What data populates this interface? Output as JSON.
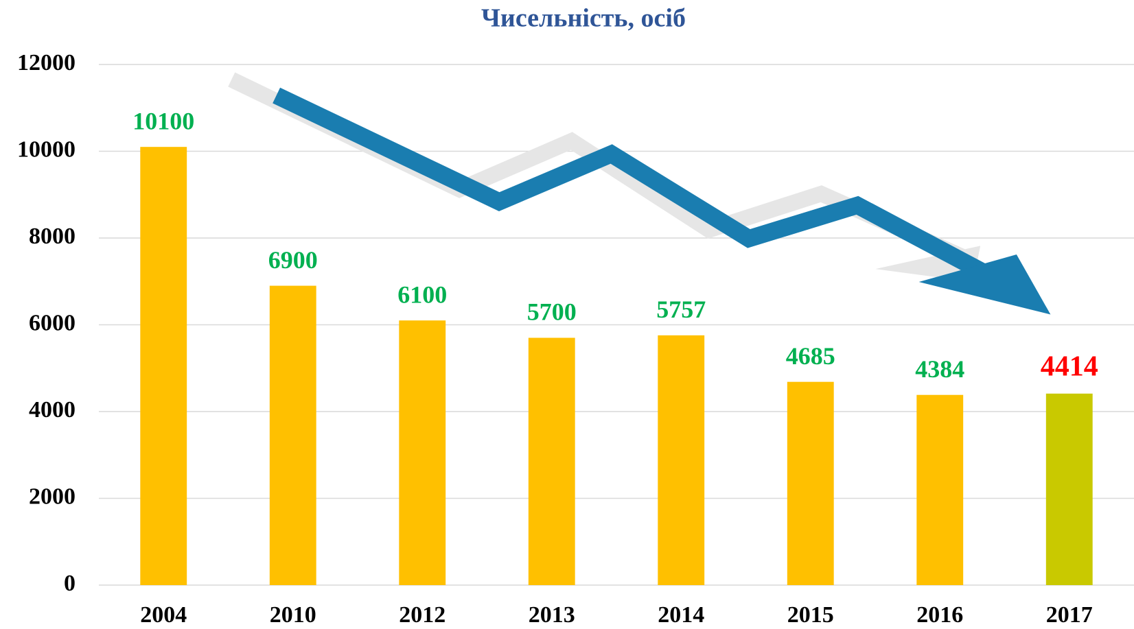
{
  "chart_data": {
    "type": "bar",
    "title": "Чисельність, осіб",
    "categories": [
      "2004",
      "2010",
      "2012",
      "2013",
      "2014",
      "2015",
      "2016",
      "2017"
    ],
    "values": [
      10100,
      6900,
      6100,
      5700,
      5757,
      4685,
      4384,
      4414
    ],
    "colors": [
      "#ffc000",
      "#ffc000",
      "#ffc000",
      "#ffc000",
      "#ffc000",
      "#ffc000",
      "#ffc000",
      "#c9c900"
    ],
    "label_colors": [
      "#00b050",
      "#00b050",
      "#00b050",
      "#00b050",
      "#00b050",
      "#00b050",
      "#00b050",
      "#ff0000"
    ],
    "ylim": [
      0,
      12000
    ],
    "yticks": [
      0,
      2000,
      4000,
      6000,
      8000,
      10000,
      12000
    ],
    "grid": true
  }
}
